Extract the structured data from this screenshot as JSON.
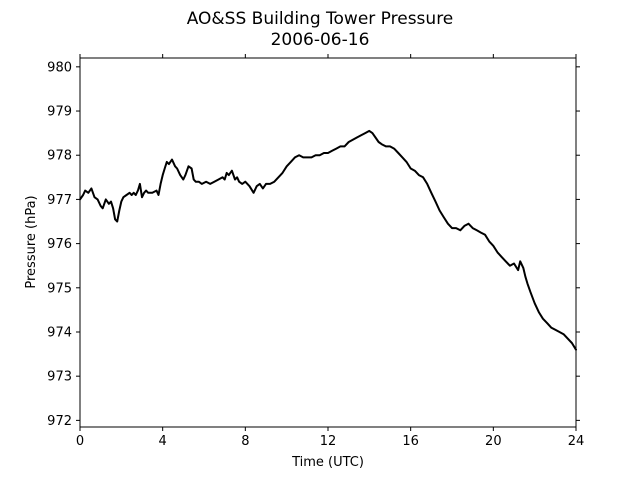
{
  "chart_data": {
    "type": "line",
    "title": "AO&SS Building Tower Pressure",
    "subtitle": "2006-06-16",
    "xlabel": "Time (UTC)",
    "ylabel": "Pressure (hPa)",
    "xlim": [
      0,
      24
    ],
    "ylim": [
      971.85,
      980.2
    ],
    "xticks": [
      0,
      4,
      8,
      12,
      16,
      20,
      24
    ],
    "yticks": [
      972,
      973,
      974,
      975,
      976,
      977,
      978,
      979,
      980
    ],
    "grid": false,
    "line_color": "#000000",
    "series": [
      {
        "x": [
          0.0,
          0.15,
          0.25,
          0.4,
          0.55,
          0.7,
          0.85,
          1.0,
          1.1,
          1.25,
          1.4,
          1.5,
          1.6,
          1.7,
          1.8,
          1.9,
          2.0,
          2.1,
          2.25,
          2.4,
          2.5,
          2.6,
          2.7,
          2.8,
          2.9,
          3.0,
          3.1,
          3.2,
          3.3,
          3.5,
          3.7,
          3.8,
          3.9,
          4.0,
          4.1,
          4.2,
          4.3,
          4.45,
          4.6,
          4.7,
          4.85,
          5.0,
          5.1,
          5.25,
          5.4,
          5.5,
          5.6,
          5.75,
          5.9,
          6.1,
          6.3,
          6.5,
          6.7,
          6.9,
          7.0,
          7.1,
          7.2,
          7.35,
          7.5,
          7.6,
          7.7,
          7.85,
          8.0,
          8.2,
          8.4,
          8.55,
          8.7,
          8.85,
          9.0,
          9.2,
          9.4,
          9.6,
          9.8,
          10.0,
          10.2,
          10.4,
          10.6,
          10.8,
          11.0,
          11.2,
          11.4,
          11.6,
          11.8,
          12.0,
          12.2,
          12.4,
          12.6,
          12.8,
          13.0,
          13.2,
          13.4,
          13.6,
          13.8,
          14.0,
          14.15,
          14.3,
          14.45,
          14.6,
          14.8,
          15.0,
          15.2,
          15.4,
          15.6,
          15.8,
          16.0,
          16.2,
          16.4,
          16.6,
          16.8,
          17.0,
          17.2,
          17.4,
          17.6,
          17.8,
          18.0,
          18.2,
          18.4,
          18.6,
          18.8,
          19.0,
          19.2,
          19.4,
          19.6,
          19.8,
          20.0,
          20.2,
          20.4,
          20.6,
          20.8,
          21.0,
          21.2,
          21.3,
          21.45,
          21.55,
          21.65,
          21.8,
          22.0,
          22.2,
          22.4,
          22.6,
          22.8,
          23.0,
          23.2,
          23.4,
          23.6,
          23.8,
          24.0
        ],
        "y": [
          977.0,
          977.1,
          977.2,
          977.15,
          977.25,
          977.05,
          977.0,
          976.85,
          976.8,
          977.0,
          976.9,
          976.95,
          976.8,
          976.55,
          976.5,
          976.75,
          976.95,
          977.05,
          977.1,
          977.15,
          977.1,
          977.15,
          977.1,
          977.2,
          977.35,
          977.05,
          977.15,
          977.2,
          977.15,
          977.15,
          977.2,
          977.1,
          977.35,
          977.55,
          977.7,
          977.85,
          977.8,
          977.9,
          977.75,
          977.7,
          977.55,
          977.45,
          977.55,
          977.75,
          977.7,
          977.45,
          977.4,
          977.4,
          977.35,
          977.4,
          977.35,
          977.4,
          977.45,
          977.5,
          977.45,
          977.6,
          977.55,
          977.65,
          977.45,
          977.5,
          977.4,
          977.35,
          977.4,
          977.3,
          977.15,
          977.3,
          977.35,
          977.25,
          977.35,
          977.35,
          977.4,
          977.5,
          977.6,
          977.75,
          977.85,
          977.95,
          978.0,
          977.95,
          977.95,
          977.95,
          978.0,
          978.0,
          978.05,
          978.05,
          978.1,
          978.15,
          978.2,
          978.2,
          978.3,
          978.35,
          978.4,
          978.45,
          978.5,
          978.55,
          978.5,
          978.4,
          978.3,
          978.25,
          978.2,
          978.2,
          978.15,
          978.05,
          977.95,
          977.85,
          977.7,
          977.65,
          977.55,
          977.5,
          977.35,
          977.15,
          976.95,
          976.75,
          976.6,
          976.45,
          976.35,
          976.35,
          976.3,
          976.4,
          976.45,
          976.35,
          976.3,
          976.25,
          976.2,
          976.05,
          975.95,
          975.8,
          975.7,
          975.6,
          975.5,
          975.55,
          975.4,
          975.6,
          975.45,
          975.25,
          975.1,
          974.9,
          974.65,
          974.45,
          974.3,
          974.2,
          974.1,
          974.05,
          974.0,
          973.95,
          973.85,
          973.75,
          973.6
        ]
      }
    ]
  }
}
